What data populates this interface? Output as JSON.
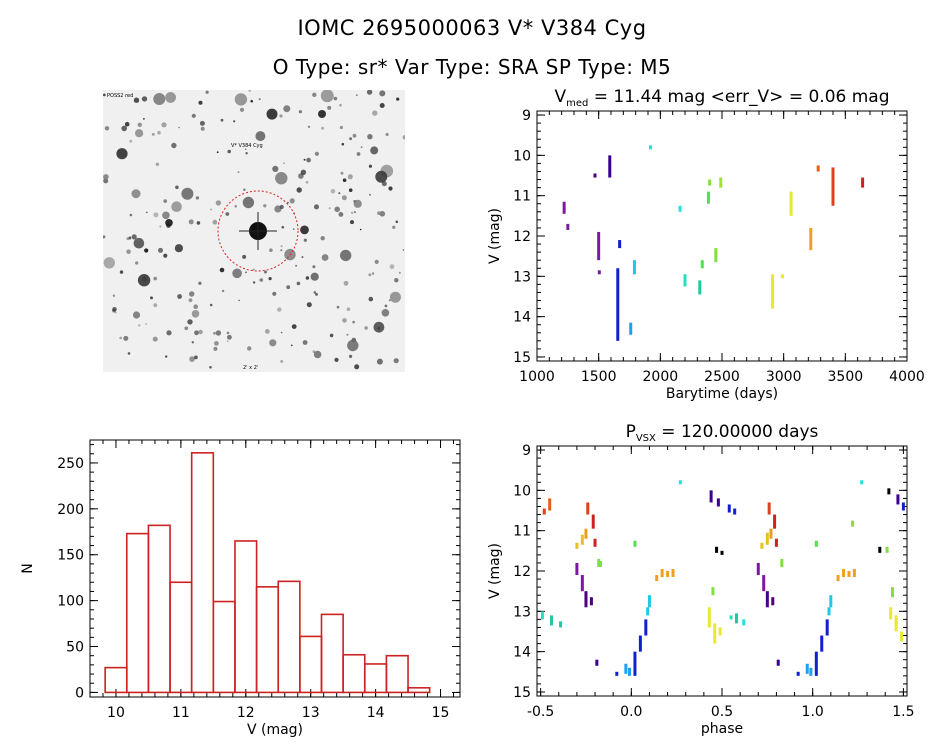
{
  "header": {
    "title": "IOMC 2695000063    V* V384 Cyg",
    "subtitle": "O Type: sr*  Var Type: SRA  SP Type: M5"
  },
  "finder_chart": {
    "top_left_label": "POSS2 red",
    "target_label": "V* V384 Cyg",
    "bottom_center_label": "2' x 2'",
    "circle_color": "#dd2222"
  },
  "chart_data": [
    {
      "type": "scatter",
      "title": "V_med = 11.44 mag <err_V> = 0.06 mag",
      "title_parts": {
        "main": "V",
        "sub": "med",
        "rest": " = 11.44 mag <err_V> = 0.06 mag"
      },
      "xlabel": "Barytime (days)",
      "ylabel": "V (mag)",
      "xlim": [
        1000,
        4000
      ],
      "ylim": [
        15.1,
        8.9
      ],
      "y_inverted": true,
      "xticks": [
        1000,
        1500,
        2000,
        2500,
        3000,
        3500,
        4000
      ],
      "yticks": [
        9,
        10,
        11,
        12,
        13,
        14,
        15
      ],
      "segments": [
        {
          "x": 1220,
          "y1": 11.15,
          "y2": 11.45,
          "color": "#7a1aa0"
        },
        {
          "x": 1250,
          "y1": 11.7,
          "y2": 11.85,
          "color": "#7a1aa0"
        },
        {
          "x": 1470,
          "y1": 10.45,
          "y2": 10.55,
          "color": "#4b0082"
        },
        {
          "x": 1500,
          "y1": 11.9,
          "y2": 12.6,
          "color": "#7a1aa0"
        },
        {
          "x": 1505,
          "y1": 12.85,
          "y2": 12.95,
          "color": "#7a1aa0"
        },
        {
          "x": 1590,
          "y1": 10.0,
          "y2": 10.55,
          "color": "#3a0090"
        },
        {
          "x": 1655,
          "y1": 12.8,
          "y2": 14.6,
          "color": "#1020d0"
        },
        {
          "x": 1670,
          "y1": 12.1,
          "y2": 12.3,
          "color": "#1020d0"
        },
        {
          "x": 1760,
          "y1": 14.15,
          "y2": 14.45,
          "color": "#1ea0f0"
        },
        {
          "x": 1790,
          "y1": 12.6,
          "y2": 12.95,
          "color": "#1ec8e6"
        },
        {
          "x": 1920,
          "y1": 9.75,
          "y2": 9.85,
          "color": "#22e0e0"
        },
        {
          "x": 2160,
          "y1": 11.25,
          "y2": 11.4,
          "color": "#22e0e0"
        },
        {
          "x": 2200,
          "y1": 12.95,
          "y2": 13.25,
          "color": "#22e0c0"
        },
        {
          "x": 2320,
          "y1": 13.1,
          "y2": 13.45,
          "color": "#22c8a0"
        },
        {
          "x": 2340,
          "y1": 12.6,
          "y2": 12.8,
          "color": "#50e050"
        },
        {
          "x": 2390,
          "y1": 10.9,
          "y2": 11.2,
          "color": "#50e050"
        },
        {
          "x": 2400,
          "y1": 10.6,
          "y2": 10.75,
          "color": "#80e040"
        },
        {
          "x": 2450,
          "y1": 12.3,
          "y2": 12.65,
          "color": "#80e040"
        },
        {
          "x": 2490,
          "y1": 10.55,
          "y2": 10.8,
          "color": "#a0e030"
        },
        {
          "x": 2910,
          "y1": 12.95,
          "y2": 13.8,
          "color": "#e8e830"
        },
        {
          "x": 2990,
          "y1": 12.95,
          "y2": 13.05,
          "color": "#e8e830"
        },
        {
          "x": 3060,
          "y1": 10.9,
          "y2": 11.5,
          "color": "#e8e830"
        },
        {
          "x": 3220,
          "y1": 11.8,
          "y2": 12.35,
          "color": "#f0a020"
        },
        {
          "x": 3280,
          "y1": 10.25,
          "y2": 10.4,
          "color": "#e06020"
        },
        {
          "x": 3400,
          "y1": 10.3,
          "y2": 11.25,
          "color": "#e04020"
        },
        {
          "x": 3640,
          "y1": 10.55,
          "y2": 10.8,
          "color": "#d02020"
        }
      ]
    },
    {
      "type": "bar",
      "title": "",
      "xlabel": "V (mag)",
      "ylabel": "N",
      "xlim": [
        9.6,
        15.3
      ],
      "ylim": [
        -5,
        275
      ],
      "xticks": [
        10,
        11,
        12,
        13,
        14,
        15
      ],
      "yticks": [
        0,
        50,
        100,
        150,
        200,
        250
      ],
      "bin_width": 0.3333,
      "bin_edges_start": 9.8333,
      "values": [
        27,
        173,
        182,
        120,
        261,
        99,
        165,
        115,
        121,
        61,
        85,
        41,
        31,
        40,
        5
      ],
      "bar_color": "#cc2222"
    },
    {
      "type": "scatter",
      "title": "P_VSX = 120.00000 days",
      "title_parts": {
        "main": "P",
        "sub": "VSX",
        "rest": " = 120.00000 days"
      },
      "xlabel": "phase",
      "ylabel": "V (mag)",
      "xlim": [
        -0.52,
        1.52
      ],
      "ylim": [
        15.1,
        8.9
      ],
      "y_inverted": true,
      "xticks": [
        -0.5,
        0.0,
        0.5,
        1.0,
        1.5
      ],
      "xtick_labels": [
        "-0.5",
        "0.0",
        "0.5",
        "1.0",
        "1.5"
      ],
      "yticks": [
        9,
        10,
        11,
        12,
        13,
        14,
        15
      ],
      "segments": [
        {
          "x": -0.48,
          "y1": 10.45,
          "y2": 10.6,
          "color": "#e04020"
        },
        {
          "x": -0.45,
          "y1": 10.2,
          "y2": 10.5,
          "color": "#e06020"
        },
        {
          "x": -0.49,
          "y1": 13.0,
          "y2": 13.2,
          "color": "#22e0c0"
        },
        {
          "x": -0.44,
          "y1": 13.1,
          "y2": 13.35,
          "color": "#22c8a0"
        },
        {
          "x": -0.39,
          "y1": 13.25,
          "y2": 13.4,
          "color": "#22c8a0"
        },
        {
          "x": -0.3,
          "y1": 11.8,
          "y2": 12.1,
          "color": "#7a1aa0"
        },
        {
          "x": -0.27,
          "y1": 12.1,
          "y2": 12.5,
          "color": "#7a1aa0"
        },
        {
          "x": -0.25,
          "y1": 12.5,
          "y2": 12.9,
          "color": "#4b0082"
        },
        {
          "x": -0.22,
          "y1": 12.65,
          "y2": 12.85,
          "color": "#4b0082"
        },
        {
          "x": -0.3,
          "y1": 11.3,
          "y2": 11.45,
          "color": "#e8c020"
        },
        {
          "x": -0.27,
          "y1": 11.1,
          "y2": 11.35,
          "color": "#e8c020"
        },
        {
          "x": -0.25,
          "y1": 10.95,
          "y2": 11.2,
          "color": "#e8a020"
        },
        {
          "x": -0.24,
          "y1": 10.3,
          "y2": 10.6,
          "color": "#e04020"
        },
        {
          "x": -0.21,
          "y1": 10.6,
          "y2": 10.95,
          "color": "#d02020"
        },
        {
          "x": -0.2,
          "y1": 11.2,
          "y2": 11.4,
          "color": "#d02020"
        },
        {
          "x": -0.18,
          "y1": 11.7,
          "y2": 11.9,
          "color": "#80e040"
        },
        {
          "x": -0.17,
          "y1": 11.75,
          "y2": 11.9,
          "color": "#80e040"
        },
        {
          "x": -0.19,
          "y1": 14.2,
          "y2": 14.35,
          "color": "#3a0090"
        },
        {
          "x": -0.08,
          "y1": 14.5,
          "y2": 14.6,
          "color": "#1020d0"
        },
        {
          "x": -0.03,
          "y1": 14.3,
          "y2": 14.55,
          "color": "#1ea0f0"
        },
        {
          "x": -0.01,
          "y1": 14.4,
          "y2": 14.6,
          "color": "#1ea0f0"
        },
        {
          "x": 0.02,
          "y1": 14.0,
          "y2": 14.6,
          "color": "#1020d0"
        },
        {
          "x": 0.05,
          "y1": 13.6,
          "y2": 14.0,
          "color": "#1020d0"
        },
        {
          "x": 0.08,
          "y1": 13.2,
          "y2": 13.6,
          "color": "#1020d0"
        },
        {
          "x": 0.09,
          "y1": 12.9,
          "y2": 13.1,
          "color": "#1ec8e6"
        },
        {
          "x": 0.1,
          "y1": 12.6,
          "y2": 12.9,
          "color": "#1ec8e6"
        },
        {
          "x": 0.02,
          "y1": 11.25,
          "y2": 11.4,
          "color": "#50e050"
        },
        {
          "x": 0.14,
          "y1": 12.1,
          "y2": 12.25,
          "color": "#f0a020"
        },
        {
          "x": 0.17,
          "y1": 11.95,
          "y2": 12.15,
          "color": "#f0a020"
        },
        {
          "x": 0.2,
          "y1": 12.0,
          "y2": 12.15,
          "color": "#f0a020"
        },
        {
          "x": 0.23,
          "y1": 11.95,
          "y2": 12.15,
          "color": "#f0a020"
        },
        {
          "x": 0.27,
          "y1": 9.75,
          "y2": 9.85,
          "color": "#22e0e0"
        },
        {
          "x": 0.43,
          "y1": 12.9,
          "y2": 13.4,
          "color": "#e8e830"
        },
        {
          "x": 0.46,
          "y1": 13.3,
          "y2": 13.8,
          "color": "#e8e830"
        },
        {
          "x": 0.49,
          "y1": 13.4,
          "y2": 13.6,
          "color": "#e8e830"
        },
        {
          "x": 0.45,
          "y1": 12.4,
          "y2": 12.6,
          "color": "#80e040"
        },
        {
          "x": 0.55,
          "y1": 13.1,
          "y2": 13.2,
          "color": "#22e0c0"
        },
        {
          "x": 0.58,
          "y1": 13.05,
          "y2": 13.3,
          "color": "#22c8a0"
        },
        {
          "x": 0.62,
          "y1": 13.2,
          "y2": 13.35,
          "color": "#22e0e0"
        },
        {
          "x": 0.44,
          "y1": 10.0,
          "y2": 10.3,
          "color": "#3a0090"
        },
        {
          "x": 0.48,
          "y1": 10.2,
          "y2": 10.4,
          "color": "#3a0090"
        },
        {
          "x": 0.54,
          "y1": 10.35,
          "y2": 10.55,
          "color": "#1020d0"
        },
        {
          "x": 0.57,
          "y1": 10.45,
          "y2": 10.6,
          "color": "#1020d0"
        },
        {
          "x": 0.47,
          "y1": 11.4,
          "y2": 11.55,
          "color": "#000000"
        },
        {
          "x": 0.5,
          "y1": 11.5,
          "y2": 11.6,
          "color": "#000000"
        },
        {
          "x": 0.72,
          "y1": 11.3,
          "y2": 11.45,
          "color": "#e8c020"
        },
        {
          "x": 0.75,
          "y1": 11.05,
          "y2": 11.35,
          "color": "#e8c020"
        },
        {
          "x": 0.77,
          "y1": 10.95,
          "y2": 11.2,
          "color": "#e8a020"
        },
        {
          "x": 0.76,
          "y1": 10.3,
          "y2": 10.6,
          "color": "#e04020"
        },
        {
          "x": 0.79,
          "y1": 10.6,
          "y2": 10.95,
          "color": "#d02020"
        },
        {
          "x": 0.8,
          "y1": 11.2,
          "y2": 11.4,
          "color": "#d02020"
        },
        {
          "x": 0.7,
          "y1": 11.8,
          "y2": 12.1,
          "color": "#7a1aa0"
        },
        {
          "x": 0.73,
          "y1": 12.1,
          "y2": 12.5,
          "color": "#7a1aa0"
        },
        {
          "x": 0.75,
          "y1": 12.5,
          "y2": 12.9,
          "color": "#4b0082"
        },
        {
          "x": 0.78,
          "y1": 12.65,
          "y2": 12.85,
          "color": "#4b0082"
        },
        {
          "x": 0.83,
          "y1": 11.7,
          "y2": 11.9,
          "color": "#80e040"
        },
        {
          "x": 0.81,
          "y1": 14.2,
          "y2": 14.35,
          "color": "#3a0090"
        },
        {
          "x": 0.92,
          "y1": 14.5,
          "y2": 14.6,
          "color": "#1020d0"
        },
        {
          "x": 0.97,
          "y1": 14.3,
          "y2": 14.55,
          "color": "#1ea0f0"
        },
        {
          "x": 0.99,
          "y1": 14.4,
          "y2": 14.6,
          "color": "#1ea0f0"
        },
        {
          "x": 1.02,
          "y1": 14.0,
          "y2": 14.6,
          "color": "#1020d0"
        },
        {
          "x": 1.05,
          "y1": 13.6,
          "y2": 14.0,
          "color": "#1020d0"
        },
        {
          "x": 1.08,
          "y1": 13.2,
          "y2": 13.6,
          "color": "#1020d0"
        },
        {
          "x": 1.09,
          "y1": 12.9,
          "y2": 13.1,
          "color": "#1ec8e6"
        },
        {
          "x": 1.1,
          "y1": 12.6,
          "y2": 12.9,
          "color": "#1ec8e6"
        },
        {
          "x": 1.02,
          "y1": 11.25,
          "y2": 11.4,
          "color": "#50e050"
        },
        {
          "x": 1.14,
          "y1": 12.1,
          "y2": 12.25,
          "color": "#f0a020"
        },
        {
          "x": 1.17,
          "y1": 11.95,
          "y2": 12.15,
          "color": "#f0a020"
        },
        {
          "x": 1.2,
          "y1": 12.0,
          "y2": 12.15,
          "color": "#f0a020"
        },
        {
          "x": 1.23,
          "y1": 11.95,
          "y2": 12.15,
          "color": "#f0a020"
        },
        {
          "x": 1.27,
          "y1": 9.75,
          "y2": 9.85,
          "color": "#22e0e0"
        },
        {
          "x": 1.22,
          "y1": 10.75,
          "y2": 10.9,
          "color": "#80e040"
        },
        {
          "x": 1.37,
          "y1": 11.4,
          "y2": 11.55,
          "color": "#000000"
        },
        {
          "x": 1.41,
          "y1": 11.4,
          "y2": 11.55,
          "color": "#80e040"
        },
        {
          "x": 1.43,
          "y1": 12.9,
          "y2": 13.2,
          "color": "#e8e830"
        },
        {
          "x": 1.46,
          "y1": 13.1,
          "y2": 13.5,
          "color": "#e8e830"
        },
        {
          "x": 1.49,
          "y1": 13.5,
          "y2": 13.75,
          "color": "#e8e830"
        },
        {
          "x": 1.44,
          "y1": 12.4,
          "y2": 12.65,
          "color": "#80e040"
        },
        {
          "x": 1.42,
          "y1": 9.95,
          "y2": 10.1,
          "color": "#000000"
        },
        {
          "x": 1.47,
          "y1": 10.1,
          "y2": 10.35,
          "color": "#3a0090"
        },
        {
          "x": 1.5,
          "y1": 10.3,
          "y2": 10.5,
          "color": "#1020d0"
        }
      ]
    }
  ]
}
